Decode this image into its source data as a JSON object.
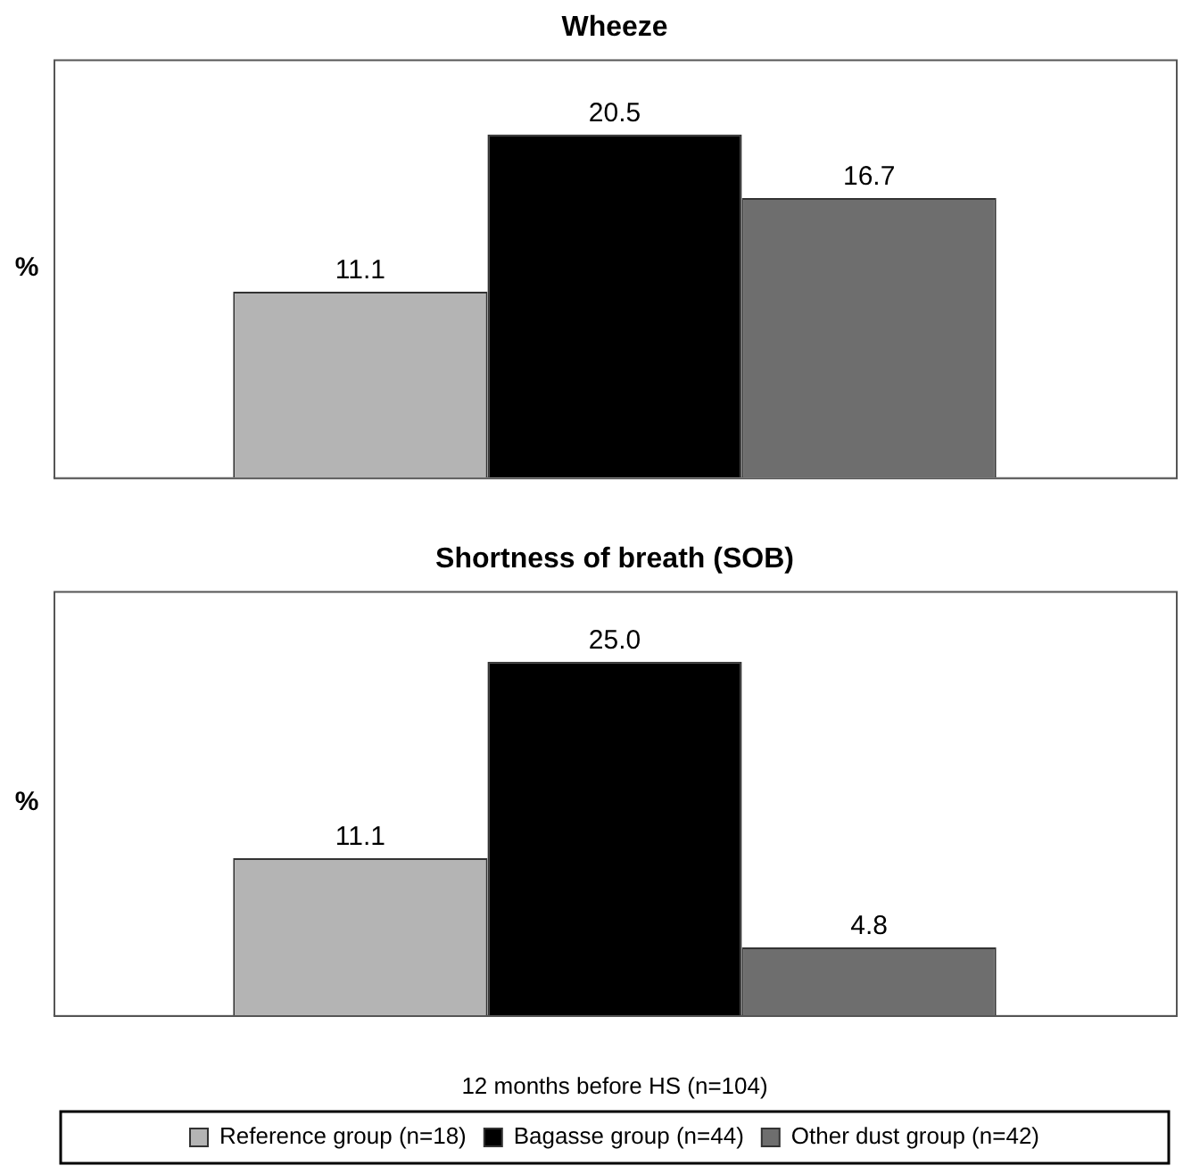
{
  "chart_data": [
    {
      "type": "bar",
      "title": "Wheeze",
      "ylabel": "%",
      "categories": [
        null
      ],
      "ylim": [
        0,
        25
      ],
      "data_labels": true,
      "grid": false,
      "legend": false,
      "series": [
        {
          "color": "#b4b4b4",
          "values": [
            11.1
          ],
          "value_labels": [
            "11.1"
          ]
        },
        {
          "color": "#000000",
          "values": [
            20.5
          ],
          "value_labels": [
            "20.5"
          ]
        },
        {
          "color": "#6e6e6e",
          "values": [
            16.7
          ],
          "value_labels": [
            "16.7"
          ]
        }
      ]
    },
    {
      "type": "bar",
      "title": "Shortness of breath (SOB)",
      "ylabel": "%",
      "xlabel": "12 months before HS (n=104)",
      "categories": [
        null
      ],
      "ylim": [
        0,
        30
      ],
      "data_labels": true,
      "grid": false,
      "legend": "bottom",
      "series": [
        {
          "name": "Reference group (n=18)",
          "color": "#b4b4b4",
          "values": [
            11.1
          ],
          "value_labels": [
            "11.1"
          ]
        },
        {
          "name": "Bagasse group (n=44)",
          "color": "#000000",
          "values": [
            25.0
          ],
          "value_labels": [
            "25.0"
          ]
        },
        {
          "name": "Other dust group (n=42)",
          "color": "#6e6e6e",
          "values": [
            4.8
          ],
          "value_labels": [
            "4.8"
          ]
        }
      ]
    }
  ]
}
